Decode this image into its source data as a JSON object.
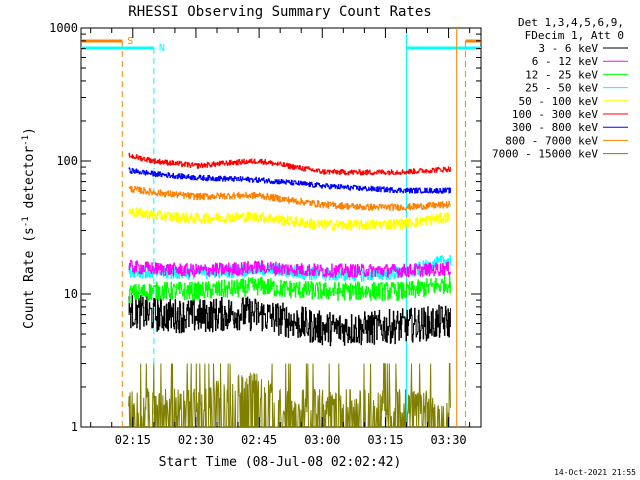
{
  "chart_data": {
    "type": "line",
    "title": "RHESSI Observing Summary Count Rates",
    "xlabel": "Start Time (08-Jul-08 02:02:42)",
    "ylabel_parts": [
      "Count Rate (s",
      "-1",
      " detector",
      "-1",
      ")"
    ],
    "y_scale": "log",
    "ylim": [
      1,
      1000
    ],
    "y_ticks": [
      1,
      10,
      100,
      1000
    ],
    "y_tick_labels": [
      "1",
      "10",
      "100",
      "1000"
    ],
    "x_range": [
      "02:02:42",
      "03:37:42"
    ],
    "x_ticks": [
      "02:15",
      "02:30",
      "02:45",
      "03:00",
      "03:15",
      "03:30"
    ],
    "grid": false,
    "legend_position": "right",
    "legend_header": [
      "Det 1,3,4,5,6,9,",
      "FDecim 1, Att 0"
    ],
    "footer_date": "14-Oct-2021 21:55",
    "data_window": [
      "02:14:00",
      "03:30:30"
    ],
    "flags": [
      {
        "label": "S",
        "color": "#ff8000",
        "start": "02:12:30",
        "end": "03:34:00"
      },
      {
        "label": "N",
        "color": "#00ffff",
        "start": "02:20:00",
        "end": "03:20:00"
      }
    ],
    "series": [
      {
        "name": "3 - 6 keV",
        "color": "#000000",
        "times": [
          "02:14",
          "02:20",
          "02:30",
          "02:40",
          "02:45",
          "02:50",
          "03:00",
          "03:10",
          "03:20",
          "03:30"
        ],
        "values": [
          7.5,
          7.0,
          6.8,
          7.2,
          7.0,
          6.5,
          5.5,
          5.5,
          5.8,
          6.2
        ]
      },
      {
        "name": "6 - 12 keV",
        "color": "#ff00ff",
        "times": [
          "02:14",
          "02:20",
          "02:30",
          "02:40",
          "02:45",
          "02:50",
          "03:00",
          "03:10",
          "03:20",
          "03:30"
        ],
        "values": [
          16,
          15.5,
          15,
          15.5,
          16,
          15.5,
          15,
          15,
          15,
          15.5
        ]
      },
      {
        "name": "12 - 25 keV",
        "color": "#00ff00",
        "times": [
          "02:14",
          "02:20",
          "02:30",
          "02:40",
          "02:45",
          "02:50",
          "03:00",
          "03:10",
          "03:20",
          "03:30"
        ],
        "values": [
          10,
          10.5,
          10.5,
          11,
          11.5,
          11,
          10.5,
          10.5,
          10.5,
          12
        ]
      },
      {
        "name": "25 - 50 keV",
        "color": "#00ffff",
        "times": [
          "02:14",
          "02:20",
          "02:30",
          "02:40",
          "02:45",
          "02:50",
          "03:00",
          "03:10",
          "03:20",
          "03:30"
        ],
        "values": [
          15,
          14.5,
          14.5,
          15,
          15.5,
          15,
          14,
          14,
          14.5,
          18
        ]
      },
      {
        "name": "50 - 100 keV",
        "color": "#ffff00",
        "times": [
          "02:14",
          "02:20",
          "02:30",
          "02:40",
          "02:45",
          "02:50",
          "03:00",
          "03:10",
          "03:20",
          "03:30"
        ],
        "values": [
          42,
          39,
          37,
          38,
          38,
          36,
          33,
          33,
          34,
          38
        ]
      },
      {
        "name": "100 - 300 keV",
        "color": "#ff0000",
        "times": [
          "02:14",
          "02:20",
          "02:30",
          "02:40",
          "02:45",
          "02:50",
          "03:00",
          "03:10",
          "03:20",
          "03:30"
        ],
        "values": [
          110,
          100,
          92,
          98,
          100,
          94,
          83,
          82,
          83,
          87
        ]
      },
      {
        "name": "300 - 800 keV",
        "color": "#0000ff",
        "times": [
          "02:14",
          "02:20",
          "02:30",
          "02:40",
          "02:45",
          "02:50",
          "03:00",
          "03:10",
          "03:20",
          "03:30"
        ],
        "values": [
          85,
          80,
          75,
          73,
          72,
          70,
          65,
          62,
          60,
          60
        ]
      },
      {
        "name": "800 - 7000 keV",
        "color": "#ff8000",
        "times": [
          "02:14",
          "02:20",
          "02:30",
          "02:40",
          "02:45",
          "02:50",
          "03:00",
          "03:10",
          "03:20",
          "03:30"
        ],
        "values": [
          62,
          58,
          54,
          55,
          55,
          52,
          47,
          45,
          45,
          47
        ]
      },
      {
        "name": "7000 - 15000 keV",
        "color": "#808000",
        "times": [
          "02:14",
          "02:20",
          "02:30",
          "02:40",
          "02:45",
          "02:50",
          "03:00",
          "03:10",
          "03:20",
          "03:30"
        ],
        "values": [
          1.5,
          1.5,
          1.5,
          2.0,
          2.0,
          1.5,
          1.5,
          1.5,
          1.5,
          1.5
        ]
      }
    ]
  }
}
